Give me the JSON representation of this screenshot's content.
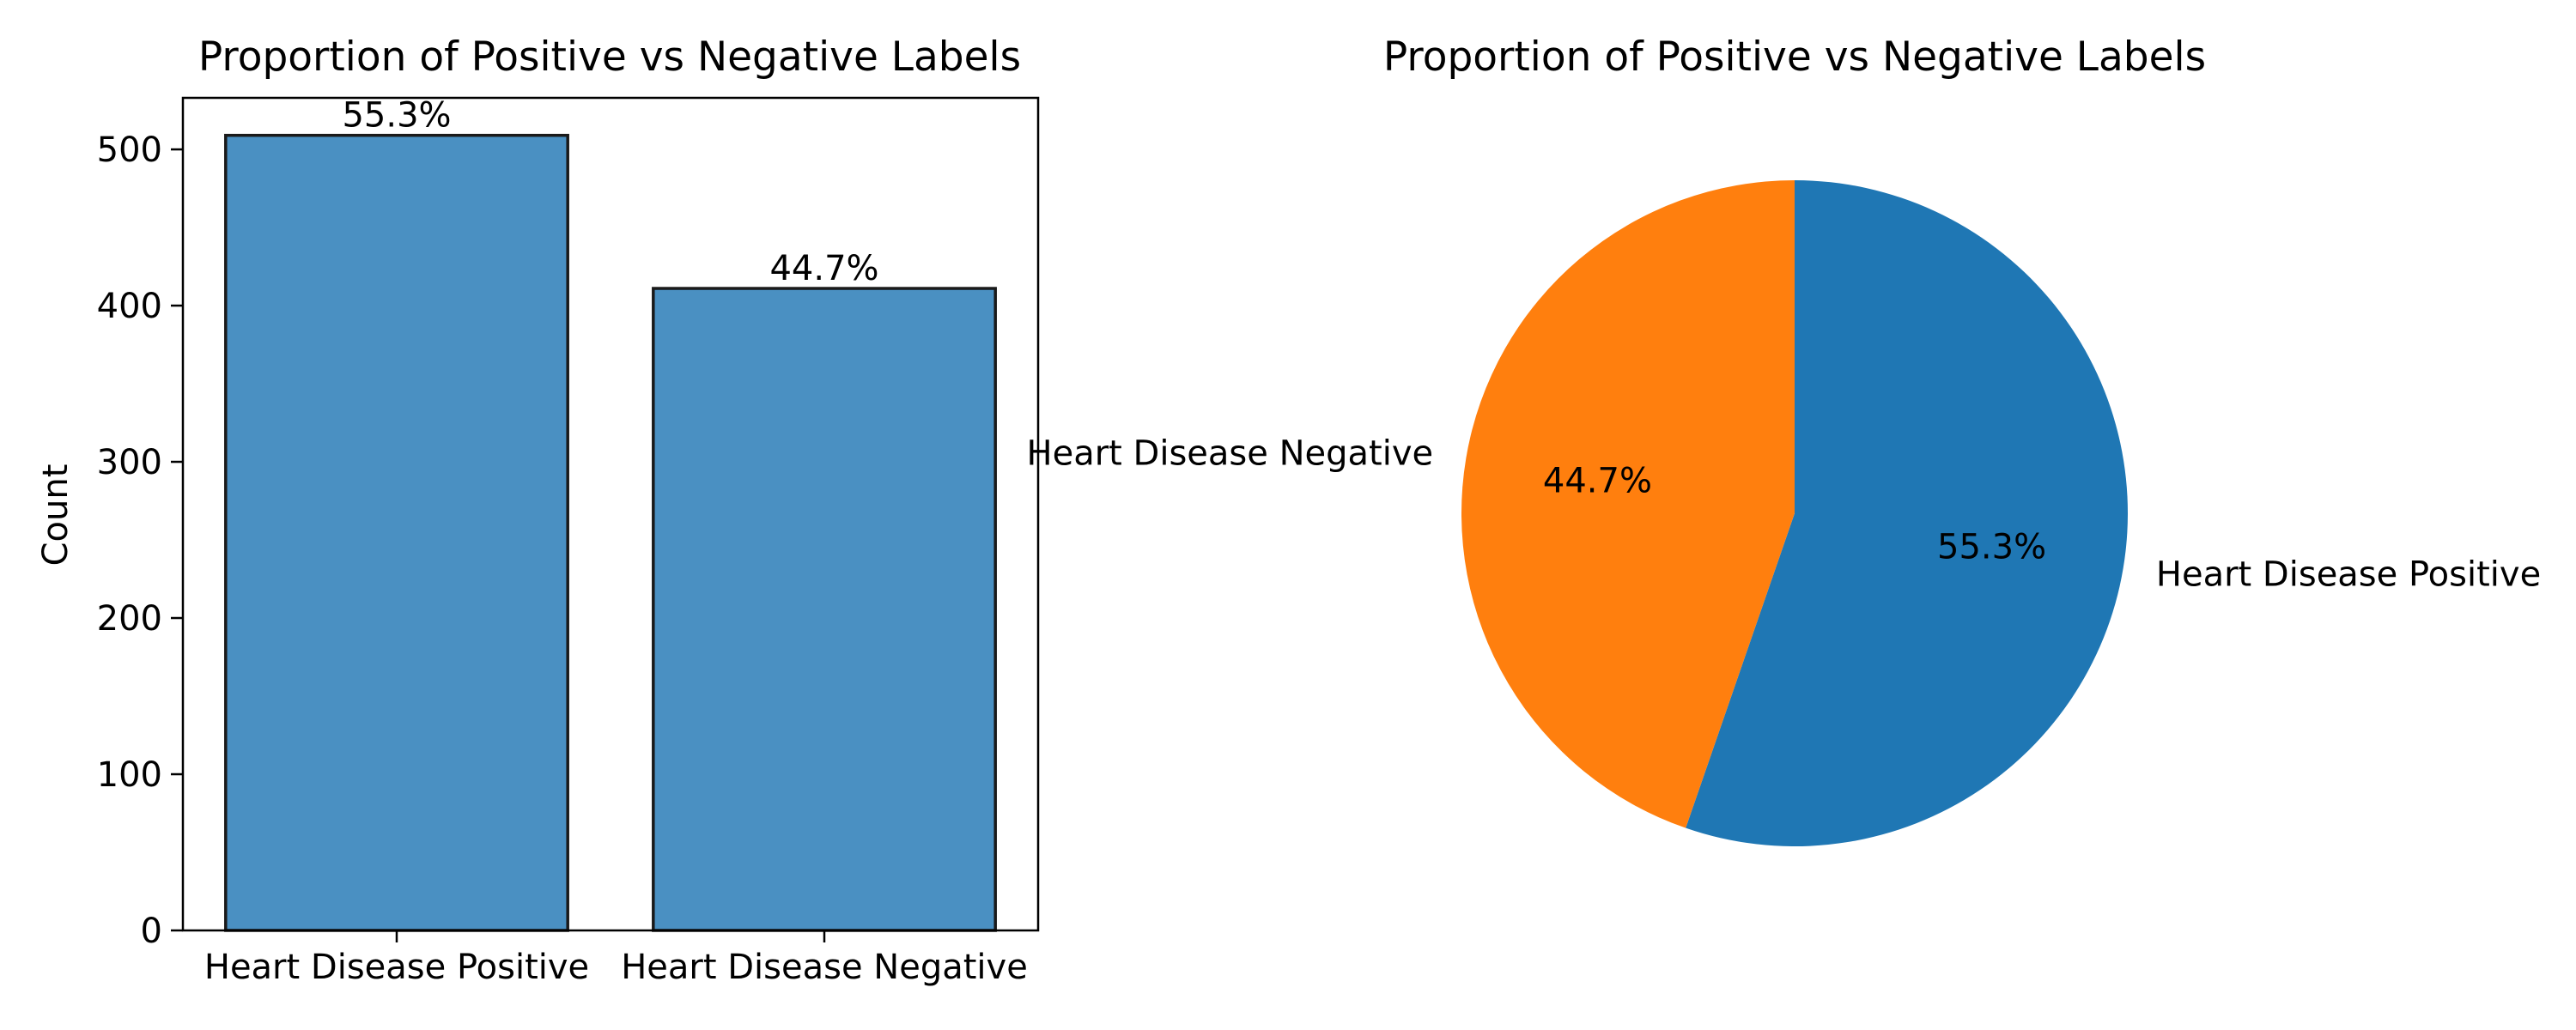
{
  "chart_data": [
    {
      "type": "bar",
      "title": "Proportion of Positive vs Negative Labels",
      "xlabel": "",
      "ylabel": "Count",
      "categories": [
        "Heart Disease Positive",
        "Heart Disease Negative"
      ],
      "values": [
        509,
        411
      ],
      "data_labels": [
        "55.3%",
        "44.7%"
      ],
      "ylim": [
        0,
        533
      ],
      "yticks": [
        0,
        100,
        200,
        300,
        400,
        500
      ],
      "grid": false,
      "bar_color": "#4a90c2",
      "edge_color": "#1a1a1a"
    },
    {
      "type": "pie",
      "title": "Proportion of Positive vs Negative Labels",
      "labels": [
        "Heart Disease Positive",
        "Heart Disease Negative"
      ],
      "values": [
        55.3,
        44.7
      ],
      "autopct": [
        "55.3%",
        "44.7%"
      ],
      "colors": [
        "#1f77b4",
        "#ff7f0e"
      ],
      "start_angle_deg": 90,
      "counterclock": false
    }
  ]
}
